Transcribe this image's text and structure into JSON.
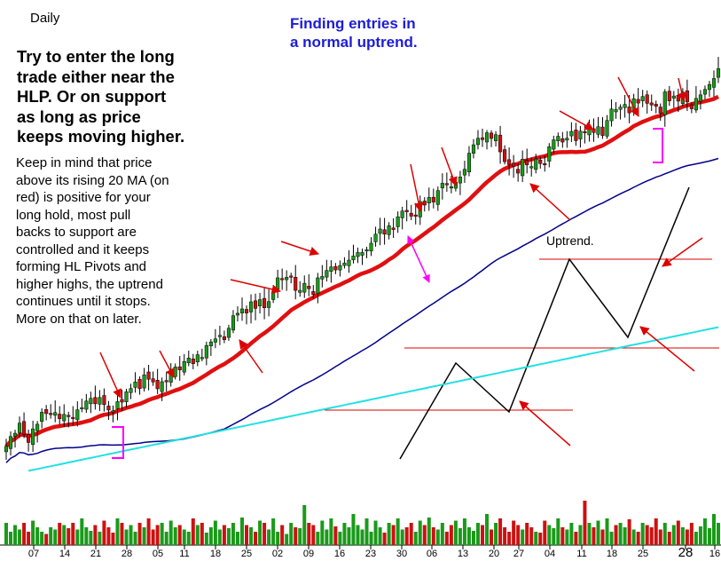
{
  "labels": {
    "timeframe": "Daily",
    "title": "Finding entries in\na normal uptrend.",
    "tip": "Try to enter the long\ntrade either near the\nHLP. Or on support\nas long as price\nkeeps moving higher.",
    "note": "Keep in mind that price\nabove its rising 20 MA (on\nred) is positive for your\nlong hold, most pull\nbacks to support are\ncontrolled and it keeps\nforming HL Pivots and\nhigher highs, the uptrend\ncontinues until it stops.\nMore on that on later.",
    "diagram_label": "Uptrend."
  },
  "colors": {
    "up": "#1a9a1a",
    "down": "#cc1111",
    "ma20": "#e01010",
    "ma50": "#00008b",
    "ma200": "#22e0e0",
    "arrow": "#dd0000",
    "bracket": "#ff00ff",
    "diagram": "#000000",
    "level": "#dd0000",
    "title": "#1c1cd8"
  },
  "chart_data": {
    "type": "candlestick",
    "timeframe": "Daily",
    "x_tick_labels": [
      "07",
      "14",
      "21",
      "28",
      "05",
      "11",
      "18",
      "25",
      "02",
      "09",
      "16",
      "23",
      "30",
      "06",
      "13",
      "20",
      "27",
      "04",
      "11",
      "18",
      "25",
      "28",
      "16"
    ],
    "price_axis": "not shown",
    "close": [
      1.7,
      5.3,
      6.5,
      10.2,
      6.0,
      3.1,
      8.1,
      9.8,
      14.2,
      13.7,
      13.8,
      14.1,
      11.8,
      13.4,
      12.9,
      12.0,
      15.1,
      15.9,
      18.3,
      19.3,
      17.3,
      19.6,
      17.0,
      15.0,
      14.7,
      18.1,
      17.9,
      21.7,
      22.9,
      25.3,
      22.9,
      27.9,
      26.3,
      25.3,
      22.8,
      25.4,
      25.8,
      28.3,
      30.8,
      29.7,
      32.8,
      34.1,
      32.0,
      35.3,
      34.3,
      38.7,
      40.0,
      41.1,
      42.4,
      40.8,
      45.0,
      49.6,
      50.5,
      52.1,
      50.6,
      54.7,
      52.3,
      55.5,
      52.5,
      54.8,
      58.3,
      63.5,
      62.8,
      63.7,
      63.8,
      58.9,
      58.9,
      61.5,
      59.5,
      57.4,
      63.5,
      64.0,
      66.2,
      67.5,
      66.4,
      68.0,
      68.9,
      70.0,
      71.5,
      72.8,
      72.8,
      73.8,
      76.2,
      79.5,
      81.4,
      79.5,
      82.6,
      81.2,
      85.9,
      88.0,
      87.7,
      86.1,
      86.2,
      91.5,
      90.2,
      93.0,
      91.3,
      95.5,
      98.2,
      97.6,
      96.9,
      98.6,
      100.5,
      103.3,
      109.2,
      112.3,
      114.7,
      114.2,
      116.7,
      114.6,
      116.0,
      109.7,
      106.1,
      105.0,
      104.4,
      101.9,
      107.0,
      104.9,
      104.3,
      107.1,
      105.4,
      105.3,
      111.6,
      114.1,
      115.4,
      113.3,
      114.7,
      117.2,
      113.8,
      117.3,
      116.8,
      118.8,
      116.8,
      118.9,
      115.7,
      121.2,
      125.4,
      125.2,
      126.1,
      127.1,
      124.0,
      129.2,
      127.6,
      130.0,
      127.5,
      126.9,
      126.4,
      123.9,
      131.7,
      128.4,
      130.2,
      128.3,
      131.6,
      128.0,
      125.5,
      129.3,
      130.6,
      132.6,
      134.4,
      136.6,
      140.2
    ],
    "moving_averages": [
      {
        "period": 20,
        "color": "red",
        "note": "20 MA (on red)"
      },
      {
        "period": 50,
        "color": "blue"
      },
      {
        "period": 200,
        "color": "cyan"
      }
    ],
    "volume": [
      0.5,
      0.3,
      0.45,
      0.35,
      0.5,
      0.3,
      0.55,
      0.4,
      0.3,
      0.25,
      0.4,
      0.35,
      0.5,
      0.45,
      0.38,
      0.5,
      0.35,
      0.6,
      0.4,
      0.32,
      0.45,
      0.3,
      0.55,
      0.4,
      0.28,
      0.6,
      0.5,
      0.35,
      0.45,
      0.3,
      0.5,
      0.4,
      0.6,
      0.35,
      0.45,
      0.5,
      0.3,
      0.55,
      0.4,
      0.45,
      0.35,
      0.3,
      0.6,
      0.45,
      0.5,
      0.28,
      0.4,
      0.55,
      0.35,
      0.45,
      0.38,
      0.5,
      0.3,
      0.62,
      0.45,
      0.4,
      0.3,
      0.55,
      0.5,
      0.35,
      0.6,
      0.3,
      0.45,
      0.25,
      0.5,
      0.4,
      0.38,
      0.9,
      0.5,
      0.45,
      0.3,
      0.55,
      0.35,
      0.6,
      0.42,
      0.3,
      0.5,
      0.4,
      0.7,
      0.45,
      0.35,
      0.6,
      0.3,
      0.55,
      0.4,
      0.28,
      0.5,
      0.45,
      0.6,
      0.35,
      0.4,
      0.5,
      0.3,
      0.55,
      0.45,
      0.62,
      0.4,
      0.35,
      0.5,
      0.3,
      0.45,
      0.55,
      0.38,
      0.6,
      0.4,
      0.32,
      0.5,
      0.45,
      0.7,
      0.35,
      0.5,
      0.6,
      0.4,
      0.3,
      0.55,
      0.45,
      0.35,
      0.5,
      0.4,
      0.3,
      0.28,
      0.55,
      0.45,
      0.38,
      0.6,
      0.4,
      0.35,
      0.5,
      0.3,
      0.45,
      1.0,
      0.5,
      0.4,
      0.55,
      0.35,
      0.6,
      0.3,
      0.45,
      0.5,
      0.4,
      0.58,
      0.35,
      0.3,
      0.5,
      0.45,
      0.4,
      0.6,
      0.35,
      0.5,
      0.3,
      0.45,
      0.55,
      0.4,
      0.35,
      0.5,
      0.3,
      0.42,
      0.6,
      0.38,
      0.7,
      0.5
    ],
    "annotations": [
      {
        "type": "diagram",
        "label": "Uptrend.",
        "shape": "zig-zag higher highs and higher lows with horizontal levels"
      }
    ]
  }
}
